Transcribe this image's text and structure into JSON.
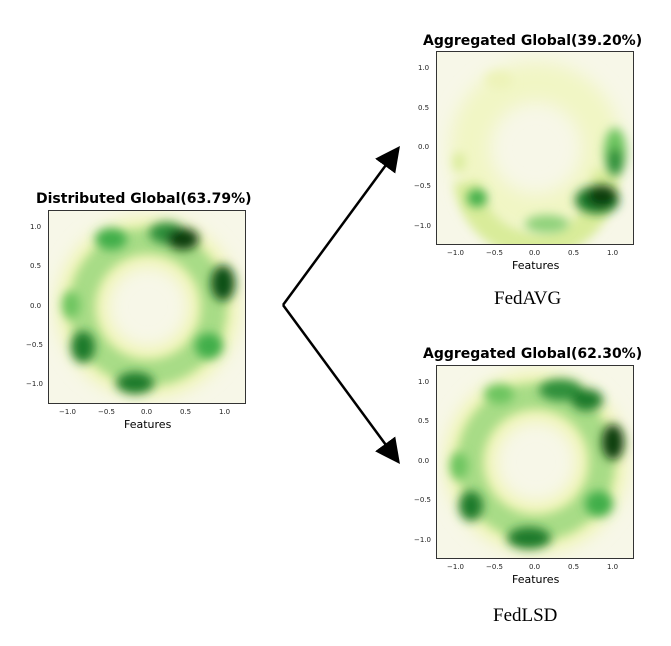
{
  "panels": [
    {
      "id": "distributed",
      "title": "Distributed Global(63.79%)",
      "xlabel": "Features",
      "x_ticks": [
        "−1.0",
        "−0.5",
        "0.0",
        "0.5",
        "1.0"
      ],
      "y_ticks": [
        "1.0",
        "0.5",
        "0.0",
        "−0.5",
        "−1.0"
      ],
      "caption": ""
    },
    {
      "id": "fedavg",
      "title": "Aggregated Global(39.20%)",
      "xlabel": "Features",
      "x_ticks": [
        "−1.0",
        "−0.5",
        "0.0",
        "0.5",
        "1.0"
      ],
      "y_ticks": [
        "1.0",
        "0.5",
        "0.0",
        "−0.5",
        "−1.0"
      ],
      "caption": "FedAVG"
    },
    {
      "id": "fedlsd",
      "title": "Aggregated Global(62.30%)",
      "xlabel": "Features",
      "x_ticks": [
        "−1.0",
        "−0.5",
        "0.0",
        "0.5",
        "1.0"
      ],
      "y_ticks": [
        "1.0",
        "0.5",
        "0.0",
        "−0.5",
        "−1.0"
      ],
      "caption": "FedLSD"
    }
  ],
  "colors": {
    "ring_light": "#e6f0a0",
    "ring_mid": "#5cc05c",
    "ring_dark": "#0b3d10",
    "plot_bg": "#f7f7e8",
    "arrow": "#000000"
  }
}
